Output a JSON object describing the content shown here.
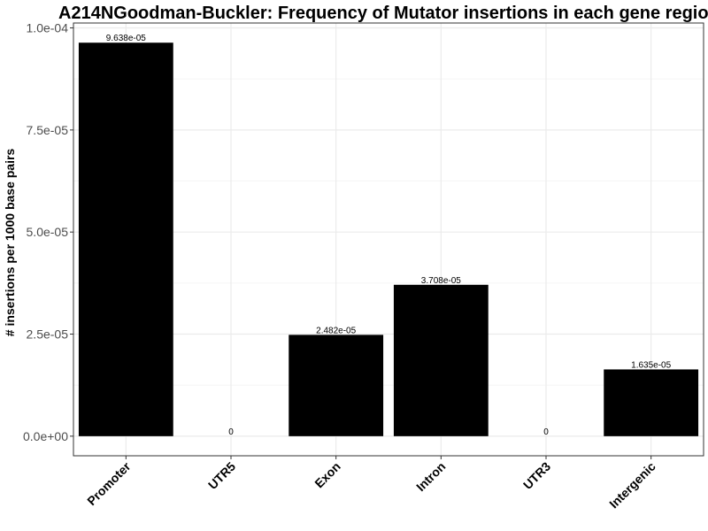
{
  "chart_data": {
    "type": "bar",
    "title": "A214NGoodman-Buckler: Frequency of Mutator insertions in each gene regio",
    "xlabel": "",
    "ylabel": "# insertions per 1000 base pairs",
    "categories": [
      "Promoter",
      "UTR5",
      "Exon",
      "Intron",
      "UTR3",
      "Intergenic"
    ],
    "values": [
      9.638e-05,
      0,
      2.482e-05,
      3.708e-05,
      0,
      1.635e-05
    ],
    "data_labels": [
      "9.638e-05",
      "0",
      "2.482e-05",
      "3.708e-05",
      "0",
      "1.635e-05"
    ],
    "ylim": [
      -4.8e-06,
      0.0001012
    ],
    "yticks": [
      0,
      2.5e-05,
      5e-05,
      7.5e-05,
      0.0001
    ],
    "ytick_labels": [
      "0.0e+00",
      "2.5e-05",
      "5.0e-05",
      "7.5e-05",
      "1.0e-04"
    ],
    "grid": true,
    "legend": "none",
    "colors": {
      "bar": "#000000",
      "grid_major": "#ebebeb",
      "grid_minor": "#f5f5f5",
      "border": "#333333",
      "tick_text": "#4d4d4d"
    }
  }
}
